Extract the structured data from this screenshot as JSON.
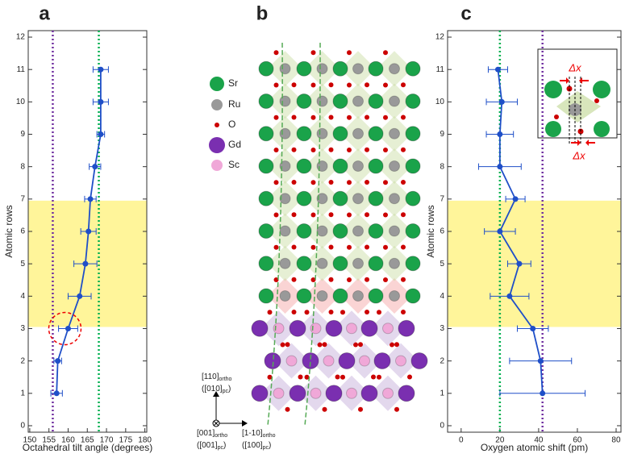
{
  "chart_data": [
    {
      "type": "errorline",
      "panel": "a",
      "xlabel": "Octahedral tilt angle (degrees)",
      "ylabel": "Atomic rows",
      "y": [
        1,
        2,
        3,
        4,
        5,
        6,
        7,
        8,
        9,
        10,
        11
      ],
      "series": [
        {
          "color": "#1f4fc8",
          "values": [
            157,
            157.3,
            160,
            163,
            164.5,
            165.3,
            165.8,
            167,
            168.5,
            168.5,
            168.5
          ],
          "errors": [
            1.5,
            1,
            2.5,
            3,
            3,
            2,
            1.5,
            1.5,
            1,
            2,
            2
          ]
        }
      ],
      "reference_lines": [
        {
          "value": 156,
          "color": "#7030a0"
        },
        {
          "value": 168,
          "color": "#00b050"
        }
      ],
      "band": [
        3.05,
        6.95
      ],
      "band_color": "#fff59a",
      "xlim": [
        149.6,
        180.5
      ],
      "xticks": [
        150,
        155,
        160,
        165,
        170,
        175,
        180
      ],
      "ylim": [
        -0.2,
        12.2
      ],
      "yticks": [
        0,
        1,
        2,
        3,
        4,
        5,
        6,
        7,
        8,
        9,
        10,
        11,
        12
      ]
    },
    {
      "type": "errorline",
      "panel": "c",
      "xlabel": "Oxygen atomic shift (pm)",
      "ylabel": "Atomic rows",
      "y": [
        1,
        2,
        3,
        4,
        5,
        6,
        7,
        8,
        9,
        10,
        11
      ],
      "series": [
        {
          "color": "#1f4fc8",
          "values": [
            42,
            41,
            37,
            25,
            30,
            20,
            28,
            20,
            20,
            21,
            19
          ],
          "errors": [
            22,
            16,
            8,
            10,
            6,
            8,
            5,
            11,
            7,
            8,
            5
          ]
        }
      ],
      "reference_lines": [
        {
          "value": 20,
          "color": "#00b050"
        },
        {
          "value": 42,
          "color": "#7030a0"
        }
      ],
      "band": [
        3.05,
        6.95
      ],
      "band_color": "#fff59a",
      "xlim": [
        -7,
        82.5
      ],
      "xticks": [
        0,
        20,
        40,
        60,
        80
      ],
      "ylim": [
        -0.2,
        12.2
      ],
      "yticks": [
        0,
        1,
        2,
        3,
        4,
        5,
        6,
        7,
        8,
        9,
        10,
        11,
        12
      ],
      "inset": {
        "delta_top": "Δx",
        "delta_bottom": "Δx"
      }
    }
  ],
  "diagram": {
    "panel": "b",
    "legend": [
      "Sr",
      "Ru",
      "O",
      "Gd",
      "Sc"
    ],
    "axes": {
      "vertical": [
        "[110]",
        "ortho",
        "([010]",
        "pc",
        ")"
      ],
      "out": [
        "[001]",
        "ortho",
        "([001]",
        "pc",
        ")"
      ],
      "horizontal": [
        "[1-10]",
        "ortho",
        "([100]",
        "pc",
        ")"
      ]
    }
  }
}
